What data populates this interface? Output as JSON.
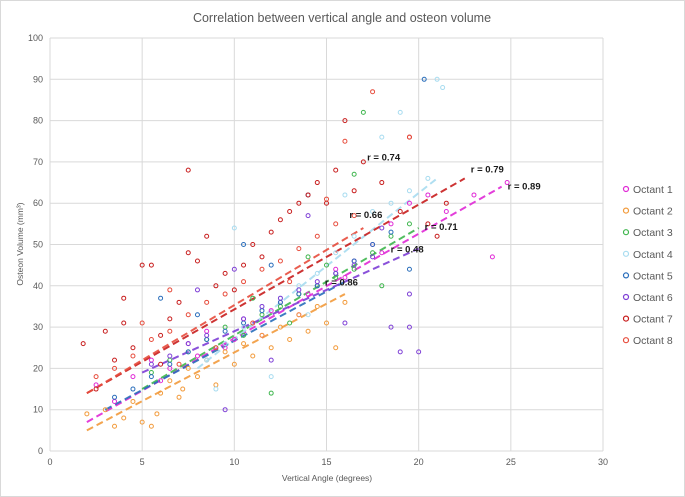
{
  "chart_data": {
    "type": "scatter",
    "title": "Correlation between vertical angle and osteon volume",
    "xlabel": "Vertical Angle (degrees)",
    "ylabel": "Osteon Volume (mm³)",
    "xlim": [
      0,
      30
    ],
    "ylim": [
      0,
      100
    ],
    "x_ticks": [
      0,
      5,
      10,
      15,
      20,
      25,
      30
    ],
    "y_ticks": [
      0,
      10,
      20,
      30,
      40,
      50,
      60,
      70,
      80,
      90,
      100
    ],
    "grid": true,
    "legend_position": "right",
    "marker": "hollow circle",
    "trendline_style": "dashed linear fit",
    "series": [
      {
        "name": "Octant 1",
        "color": "#e02ad6",
        "r_label": "r = 0.89",
        "trendline": {
          "x": [
            2.0,
            24.5
          ],
          "y": [
            7.0,
            64.0
          ]
        },
        "points": [
          [
            2.5,
            16
          ],
          [
            3.5,
            12
          ],
          [
            4.5,
            18
          ],
          [
            5.5,
            22
          ],
          [
            6.5,
            20
          ],
          [
            7.5,
            26
          ],
          [
            8.5,
            29
          ],
          [
            9.5,
            25
          ],
          [
            10.5,
            32
          ],
          [
            11.5,
            28
          ],
          [
            12.5,
            36
          ],
          [
            13.5,
            33
          ],
          [
            14.5,
            40
          ],
          [
            15.5,
            44
          ],
          [
            16.5,
            46
          ],
          [
            17.5,
            50
          ],
          [
            18.5,
            55
          ],
          [
            19.5,
            60
          ],
          [
            20.5,
            62
          ],
          [
            21.5,
            58
          ],
          [
            23.0,
            62
          ],
          [
            24.0,
            47
          ],
          [
            24.8,
            65
          ],
          [
            6.0,
            17
          ],
          [
            8.0,
            23
          ],
          [
            10.0,
            27
          ],
          [
            12.0,
            34
          ],
          [
            14.0,
            38
          ],
          [
            16.0,
            42
          ],
          [
            18.0,
            48
          ]
        ]
      },
      {
        "name": "Octant 2",
        "color": "#f29b3c",
        "r_label": "",
        "trendline": {
          "x": [
            2.0,
            16.0
          ],
          "y": [
            5.0,
            38.0
          ]
        },
        "points": [
          [
            2.0,
            9
          ],
          [
            3.0,
            10
          ],
          [
            3.5,
            6
          ],
          [
            4.0,
            8
          ],
          [
            4.5,
            12
          ],
          [
            5.0,
            7
          ],
          [
            5.5,
            6
          ],
          [
            6.0,
            14
          ],
          [
            6.5,
            17
          ],
          [
            7.0,
            13
          ],
          [
            7.5,
            20
          ],
          [
            8.0,
            18
          ],
          [
            8.5,
            22
          ],
          [
            9.0,
            16
          ],
          [
            9.5,
            24
          ],
          [
            10.0,
            21
          ],
          [
            10.5,
            26
          ],
          [
            11.0,
            23
          ],
          [
            11.5,
            28
          ],
          [
            12.0,
            25
          ],
          [
            12.5,
            30
          ],
          [
            13.0,
            27
          ],
          [
            13.5,
            33
          ],
          [
            14.0,
            29
          ],
          [
            14.5,
            35
          ],
          [
            15.0,
            31
          ],
          [
            15.5,
            25
          ],
          [
            16.0,
            36
          ],
          [
            5.8,
            9
          ],
          [
            7.2,
            15
          ]
        ]
      },
      {
        "name": "Octant 3",
        "color": "#3fb64e",
        "r_label": "r = 0.71",
        "trendline": {
          "x": [
            5.0,
            20.0
          ],
          "y": [
            15.0,
            54.0
          ]
        },
        "points": [
          [
            5.5,
            19
          ],
          [
            6.5,
            22
          ],
          [
            7.5,
            24
          ],
          [
            8.5,
            27
          ],
          [
            9.5,
            30
          ],
          [
            10.5,
            28
          ],
          [
            11.5,
            33
          ],
          [
            12.5,
            35
          ],
          [
            13.5,
            38
          ],
          [
            14.5,
            40
          ],
          [
            15.5,
            42
          ],
          [
            16.5,
            44
          ],
          [
            17.5,
            48
          ],
          [
            18.5,
            52
          ],
          [
            19.5,
            55
          ],
          [
            16.5,
            67
          ],
          [
            17.0,
            82
          ],
          [
            15.0,
            45
          ],
          [
            13.0,
            31
          ],
          [
            11.0,
            37
          ],
          [
            9.0,
            25
          ],
          [
            12.0,
            14
          ],
          [
            18.0,
            40
          ],
          [
            14.0,
            47
          ]
        ]
      },
      {
        "name": "Octant 4",
        "color": "#a8dcf0",
        "r_label": "r = 0.74",
        "trendline": {
          "x": [
            8.0,
            21.0
          ],
          "y": [
            20.0,
            66.0
          ]
        },
        "points": [
          [
            8.5,
            22
          ],
          [
            9.5,
            26
          ],
          [
            10.5,
            30
          ],
          [
            11.5,
            34
          ],
          [
            12.5,
            37
          ],
          [
            13.5,
            40
          ],
          [
            14.5,
            43
          ],
          [
            15.5,
            48
          ],
          [
            16.5,
            52
          ],
          [
            17.5,
            58
          ],
          [
            18.5,
            60
          ],
          [
            19.5,
            63
          ],
          [
            20.5,
            66
          ],
          [
            21.0,
            90
          ],
          [
            21.3,
            88
          ],
          [
            18.0,
            76
          ],
          [
            19.0,
            82
          ],
          [
            10.0,
            54
          ],
          [
            12.0,
            18
          ],
          [
            14.0,
            33
          ],
          [
            16.0,
            62
          ],
          [
            9.0,
            15
          ]
        ]
      },
      {
        "name": "Octant 5",
        "color": "#2a6ebb",
        "r_label": "r = 0.86",
        "trendline": {
          "x": [
            3.0,
            16.0
          ],
          "y": [
            10.0,
            41.0
          ]
        },
        "points": [
          [
            3.5,
            13
          ],
          [
            4.5,
            15
          ],
          [
            5.5,
            18
          ],
          [
            6.5,
            21
          ],
          [
            7.5,
            24
          ],
          [
            8.5,
            27
          ],
          [
            9.5,
            29
          ],
          [
            10.5,
            31
          ],
          [
            11.5,
            34
          ],
          [
            12.5,
            36
          ],
          [
            13.5,
            38
          ],
          [
            14.5,
            40
          ],
          [
            15.5,
            43
          ],
          [
            16.5,
            46
          ],
          [
            17.5,
            50
          ],
          [
            18.5,
            53
          ],
          [
            19.5,
            44
          ],
          [
            20.3,
            90
          ],
          [
            10.5,
            50
          ],
          [
            12.0,
            45
          ],
          [
            14.0,
            62
          ],
          [
            8.0,
            33
          ],
          [
            6.0,
            37
          ]
        ]
      },
      {
        "name": "Octant 6",
        "color": "#7e3fd6",
        "r_label": "r = 0.48",
        "trendline": {
          "x": [
            5.0,
            20.0
          ],
          "y": [
            19.0,
            49.0
          ]
        },
        "points": [
          [
            5.5,
            21
          ],
          [
            6.5,
            23
          ],
          [
            7.5,
            26
          ],
          [
            8.5,
            28
          ],
          [
            9.5,
            10
          ],
          [
            10.5,
            32
          ],
          [
            11.5,
            35
          ],
          [
            12.5,
            37
          ],
          [
            13.5,
            39
          ],
          [
            14.5,
            41
          ],
          [
            15.5,
            43
          ],
          [
            16.5,
            45
          ],
          [
            17.5,
            47
          ],
          [
            18.5,
            30
          ],
          [
            19.0,
            24
          ],
          [
            19.5,
            38
          ],
          [
            20.0,
            24
          ],
          [
            18.0,
            54
          ],
          [
            19.5,
            30
          ],
          [
            14.0,
            57
          ],
          [
            12.0,
            22
          ],
          [
            10.0,
            44
          ],
          [
            16.0,
            31
          ],
          [
            8.0,
            39
          ]
        ]
      },
      {
        "name": "Octant 7",
        "color": "#c81e1e",
        "r_label": "r = 0.79",
        "trendline": {
          "x": [
            2.0,
            22.5
          ],
          "y": [
            14.0,
            66.0
          ]
        },
        "points": [
          [
            1.8,
            26
          ],
          [
            2.5,
            15
          ],
          [
            3.0,
            29
          ],
          [
            3.5,
            22
          ],
          [
            4.0,
            31
          ],
          [
            4.5,
            25
          ],
          [
            5.0,
            45
          ],
          [
            5.5,
            45
          ],
          [
            6.0,
            28
          ],
          [
            6.5,
            32
          ],
          [
            7.0,
            36
          ],
          [
            7.5,
            48
          ],
          [
            8.0,
            46
          ],
          [
            8.5,
            52
          ],
          [
            9.0,
            40
          ],
          [
            9.5,
            43
          ],
          [
            10.0,
            39
          ],
          [
            10.5,
            45
          ],
          [
            11.0,
            50
          ],
          [
            11.5,
            47
          ],
          [
            12.0,
            53
          ],
          [
            12.5,
            56
          ],
          [
            13.0,
            58
          ],
          [
            13.5,
            60
          ],
          [
            14.0,
            62
          ],
          [
            14.5,
            65
          ],
          [
            15.0,
            60
          ],
          [
            15.5,
            68
          ],
          [
            16.0,
            80
          ],
          [
            16.5,
            63
          ],
          [
            17.0,
            70
          ],
          [
            18.0,
            65
          ],
          [
            19.0,
            58
          ],
          [
            19.5,
            76
          ],
          [
            20.5,
            55
          ],
          [
            21.0,
            52
          ],
          [
            21.5,
            60
          ],
          [
            7.5,
            68
          ],
          [
            4.0,
            37
          ],
          [
            6.0,
            21
          ]
        ]
      },
      {
        "name": "Octant 8",
        "color": "#e74c3c",
        "r_label": "r = 0.66",
        "trendline": {
          "x": [
            2.0,
            17.0
          ],
          "y": [
            14.0,
            54.0
          ]
        },
        "points": [
          [
            2.5,
            18
          ],
          [
            3.5,
            20
          ],
          [
            4.5,
            23
          ],
          [
            5.5,
            27
          ],
          [
            6.5,
            29
          ],
          [
            7.5,
            33
          ],
          [
            8.5,
            36
          ],
          [
            9.5,
            38
          ],
          [
            10.5,
            41
          ],
          [
            11.5,
            44
          ],
          [
            12.5,
            46
          ],
          [
            13.5,
            49
          ],
          [
            14.5,
            52
          ],
          [
            15.5,
            55
          ],
          [
            16.5,
            57
          ],
          [
            17.5,
            87
          ],
          [
            19.5,
            76
          ],
          [
            16.0,
            75
          ],
          [
            15.0,
            61
          ],
          [
            13.0,
            41
          ],
          [
            11.0,
            31
          ],
          [
            9.0,
            25
          ],
          [
            7.0,
            21
          ],
          [
            5.0,
            31
          ],
          [
            6.5,
            39
          ]
        ]
      }
    ]
  }
}
